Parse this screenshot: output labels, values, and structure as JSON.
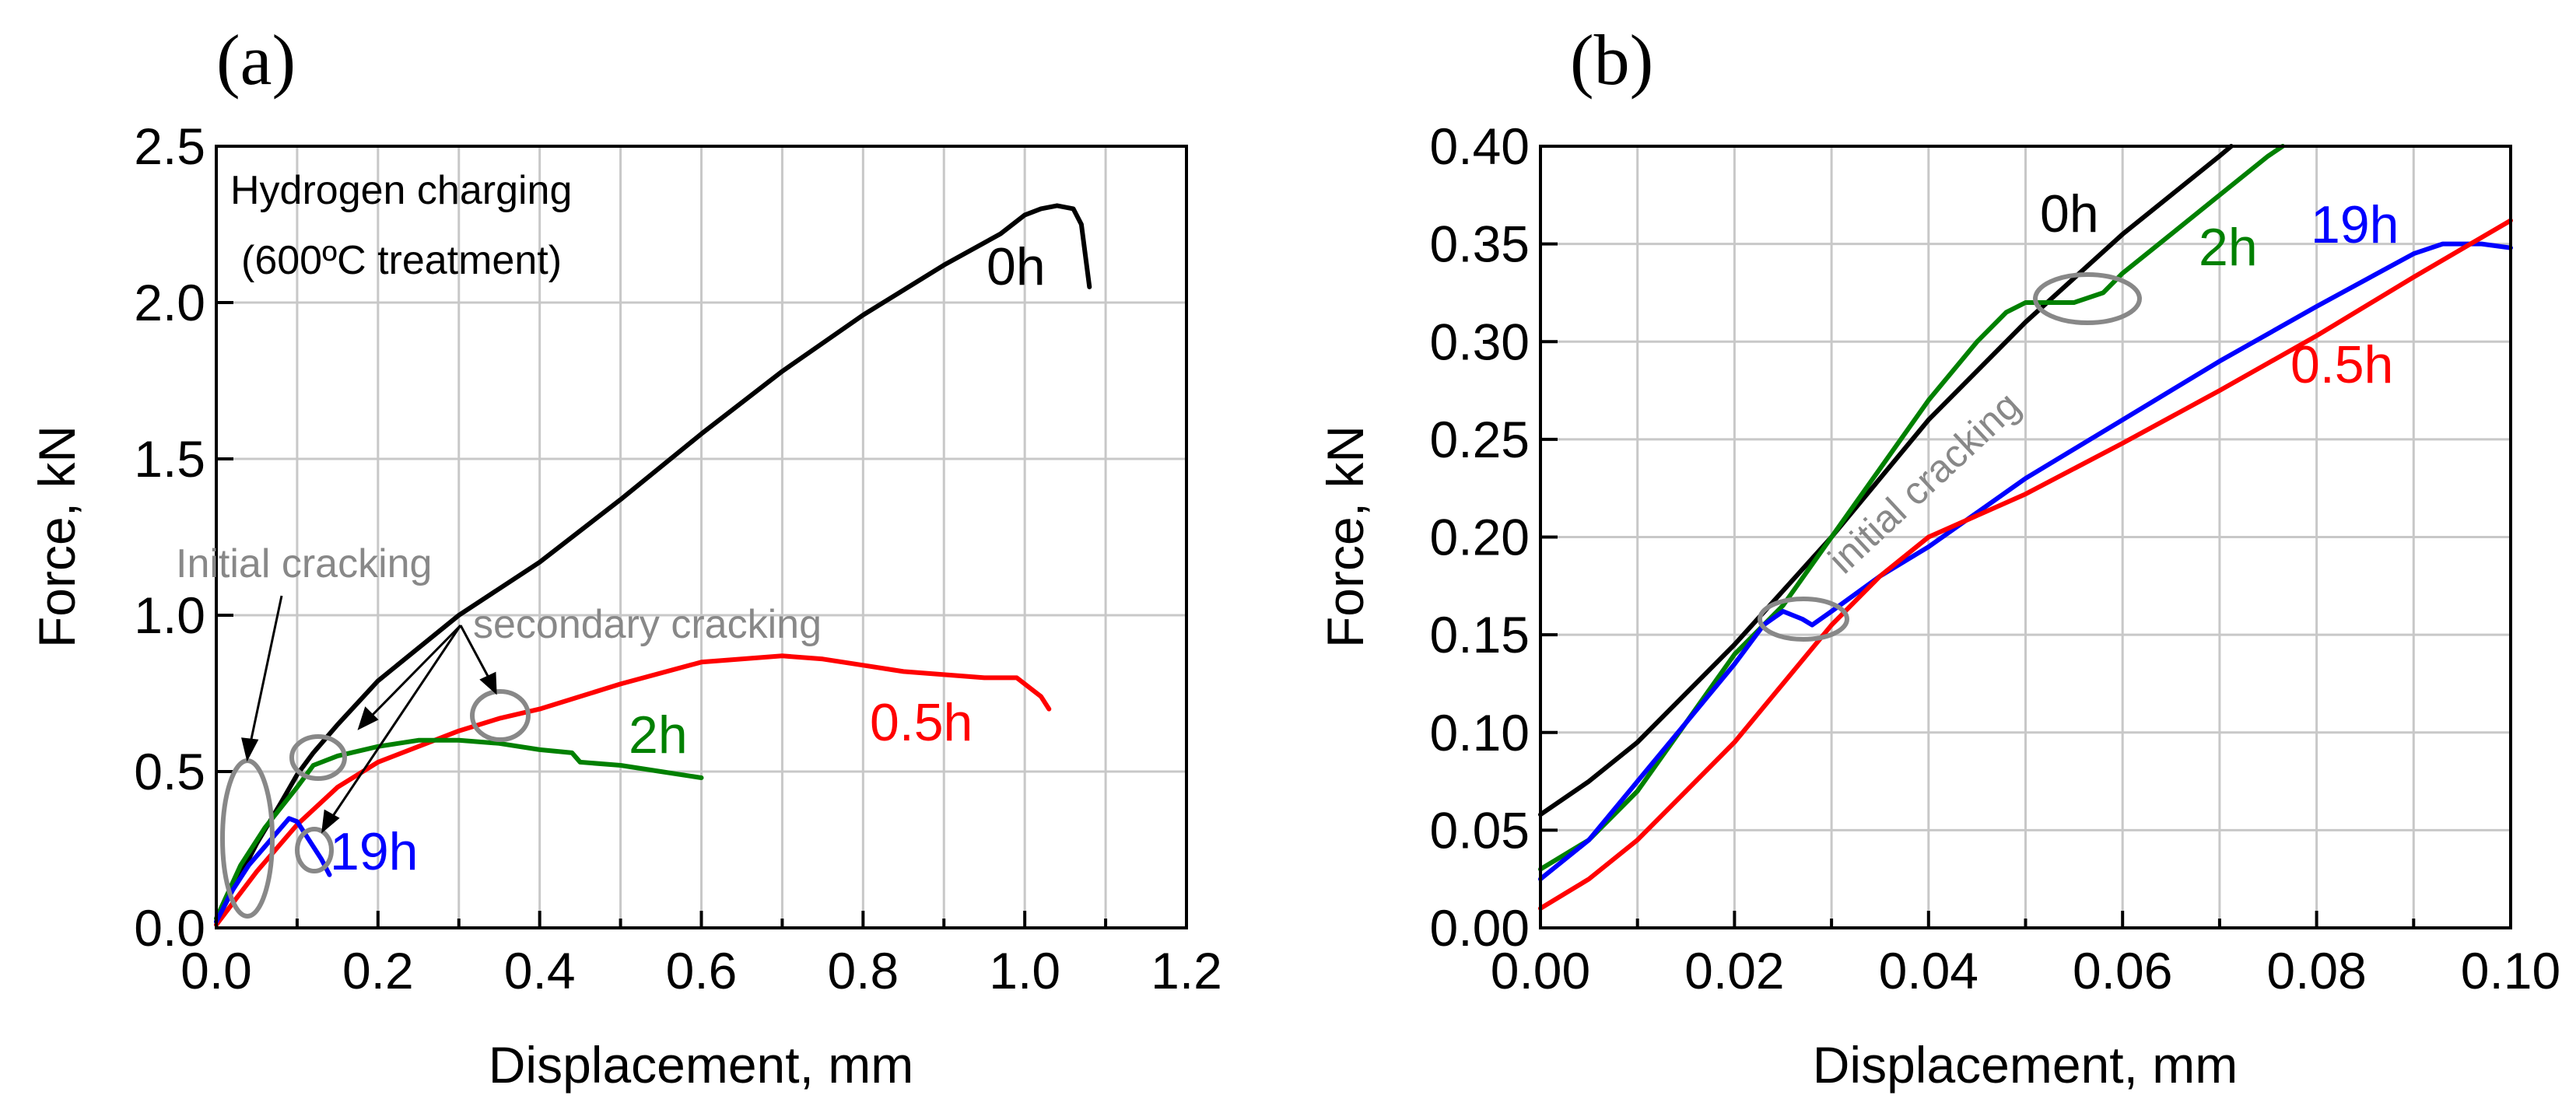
{
  "chart_data": [
    {
      "panel": "(a)",
      "type": "line",
      "xlabel": "Displacement, mm",
      "ylabel": "Force, kN",
      "xlim": [
        0.0,
        1.2
      ],
      "ylim": [
        0.0,
        2.5
      ],
      "x_ticks": [
        "0.0",
        "0.2",
        "0.4",
        "0.6",
        "0.8",
        "1.0",
        "1.2"
      ],
      "y_ticks": [
        "0.0",
        "0.5",
        "1.0",
        "1.5",
        "2.0",
        "2.5"
      ],
      "grid": true,
      "legend_title": [
        "Hydrogen charging",
        "(600ºC treatment)"
      ],
      "series": [
        {
          "name": "0h",
          "color": "#000000",
          "points": [
            [
              0,
              0.02
            ],
            [
              0.02,
              0.12
            ],
            [
              0.05,
              0.27
            ],
            [
              0.08,
              0.4
            ],
            [
              0.1,
              0.49
            ],
            [
              0.12,
              0.56
            ],
            [
              0.15,
              0.65
            ],
            [
              0.2,
              0.79
            ],
            [
              0.3,
              1.0
            ],
            [
              0.4,
              1.17
            ],
            [
              0.5,
              1.37
            ],
            [
              0.6,
              1.58
            ],
            [
              0.7,
              1.78
            ],
            [
              0.8,
              1.96
            ],
            [
              0.9,
              2.12
            ],
            [
              0.97,
              2.22
            ],
            [
              1.0,
              2.28
            ],
            [
              1.02,
              2.3
            ],
            [
              1.04,
              2.31
            ],
            [
              1.06,
              2.3
            ],
            [
              1.07,
              2.25
            ],
            [
              1.08,
              2.05
            ]
          ]
        },
        {
          "name": "0.5h",
          "color": "#ff0000",
          "points": [
            [
              0,
              0.01
            ],
            [
              0.05,
              0.18
            ],
            [
              0.1,
              0.33
            ],
            [
              0.15,
              0.45
            ],
            [
              0.2,
              0.53
            ],
            [
              0.3,
              0.63
            ],
            [
              0.35,
              0.67
            ],
            [
              0.4,
              0.7
            ],
            [
              0.5,
              0.78
            ],
            [
              0.6,
              0.85
            ],
            [
              0.65,
              0.86
            ],
            [
              0.7,
              0.87
            ],
            [
              0.75,
              0.86
            ],
            [
              0.8,
              0.84
            ],
            [
              0.85,
              0.82
            ],
            [
              0.9,
              0.81
            ],
            [
              0.95,
              0.8
            ],
            [
              0.99,
              0.8
            ],
            [
              1.02,
              0.74
            ],
            [
              1.03,
              0.7
            ]
          ]
        },
        {
          "name": "2h",
          "color": "#008000",
          "points": [
            [
              0,
              0.03
            ],
            [
              0.03,
              0.2
            ],
            [
              0.06,
              0.32
            ],
            [
              0.1,
              0.45
            ],
            [
              0.12,
              0.52
            ],
            [
              0.15,
              0.55
            ],
            [
              0.2,
              0.58
            ],
            [
              0.25,
              0.6
            ],
            [
              0.3,
              0.6
            ],
            [
              0.35,
              0.59
            ],
            [
              0.4,
              0.57
            ],
            [
              0.44,
              0.56
            ],
            [
              0.45,
              0.53
            ],
            [
              0.5,
              0.52
            ],
            [
              0.55,
              0.5
            ],
            [
              0.6,
              0.48
            ]
          ]
        },
        {
          "name": "19h",
          "color": "#0000ff",
          "points": [
            [
              0,
              0.02
            ],
            [
              0.02,
              0.12
            ],
            [
              0.04,
              0.2
            ],
            [
              0.06,
              0.26
            ],
            [
              0.08,
              0.32
            ],
            [
              0.09,
              0.35
            ],
            [
              0.1,
              0.34
            ],
            [
              0.11,
              0.3
            ],
            [
              0.12,
              0.26
            ],
            [
              0.13,
              0.22
            ],
            [
              0.14,
              0.17
            ]
          ]
        }
      ],
      "series_labels": [
        "0h",
        "0.5h",
        "2h",
        "19h"
      ],
      "annotations": [
        "Initial cracking",
        "secondary cracking"
      ]
    },
    {
      "panel": "(b)",
      "type": "line",
      "xlabel": "Displacement, mm",
      "ylabel": "Force, kN",
      "xlim": [
        0.0,
        0.1
      ],
      "ylim": [
        0.0,
        0.4
      ],
      "x_ticks": [
        "0.00",
        "0.02",
        "0.04",
        "0.06",
        "0.08",
        "0.10"
      ],
      "y_ticks": [
        "0.00",
        "0.05",
        "0.10",
        "0.15",
        "0.20",
        "0.25",
        "0.30",
        "0.35",
        "0.40"
      ],
      "grid": true,
      "series": [
        {
          "name": "0h",
          "color": "#000000",
          "points": [
            [
              0,
              0.058
            ],
            [
              0.005,
              0.075
            ],
            [
              0.01,
              0.095
            ],
            [
              0.02,
              0.145
            ],
            [
              0.03,
              0.2
            ],
            [
              0.04,
              0.26
            ],
            [
              0.05,
              0.31
            ],
            [
              0.06,
              0.355
            ],
            [
              0.07,
              0.395
            ],
            [
              0.0712,
              0.4
            ]
          ]
        },
        {
          "name": "2h",
          "color": "#008000",
          "points": [
            [
              0,
              0.03
            ],
            [
              0.005,
              0.045
            ],
            [
              0.01,
              0.07
            ],
            [
              0.02,
              0.14
            ],
            [
              0.025,
              0.165
            ],
            [
              0.03,
              0.2
            ],
            [
              0.035,
              0.235
            ],
            [
              0.04,
              0.27
            ],
            [
              0.045,
              0.3
            ],
            [
              0.048,
              0.315
            ],
            [
              0.05,
              0.32
            ],
            [
              0.055,
              0.32
            ],
            [
              0.058,
              0.325
            ],
            [
              0.06,
              0.335
            ],
            [
              0.065,
              0.355
            ],
            [
              0.07,
              0.375
            ],
            [
              0.075,
              0.395
            ],
            [
              0.0765,
              0.4
            ]
          ]
        },
        {
          "name": "19h",
          "color": "#0000ff",
          "points": [
            [
              0,
              0.025
            ],
            [
              0.005,
              0.045
            ],
            [
              0.01,
              0.075
            ],
            [
              0.015,
              0.105
            ],
            [
              0.02,
              0.135
            ],
            [
              0.023,
              0.155
            ],
            [
              0.025,
              0.162
            ],
            [
              0.027,
              0.158
            ],
            [
              0.028,
              0.155
            ],
            [
              0.03,
              0.162
            ],
            [
              0.035,
              0.18
            ],
            [
              0.04,
              0.195
            ],
            [
              0.05,
              0.23
            ],
            [
              0.06,
              0.26
            ],
            [
              0.07,
              0.29
            ],
            [
              0.08,
              0.318
            ],
            [
              0.09,
              0.345
            ],
            [
              0.093,
              0.35
            ],
            [
              0.097,
              0.35
            ],
            [
              0.1,
              0.348
            ]
          ]
        },
        {
          "name": "0.5h",
          "color": "#ff0000",
          "points": [
            [
              0,
              0.01
            ],
            [
              0.005,
              0.025
            ],
            [
              0.01,
              0.045
            ],
            [
              0.015,
              0.07
            ],
            [
              0.02,
              0.095
            ],
            [
              0.025,
              0.125
            ],
            [
              0.03,
              0.155
            ],
            [
              0.035,
              0.18
            ],
            [
              0.04,
              0.2
            ],
            [
              0.05,
              0.222
            ],
            [
              0.06,
              0.248
            ],
            [
              0.07,
              0.275
            ],
            [
              0.08,
              0.303
            ],
            [
              0.09,
              0.333
            ],
            [
              0.1,
              0.362
            ]
          ]
        }
      ],
      "series_labels": [
        "0h",
        "2h",
        "19h",
        "0.5h"
      ],
      "annotations": [
        "initial cracking"
      ]
    }
  ]
}
